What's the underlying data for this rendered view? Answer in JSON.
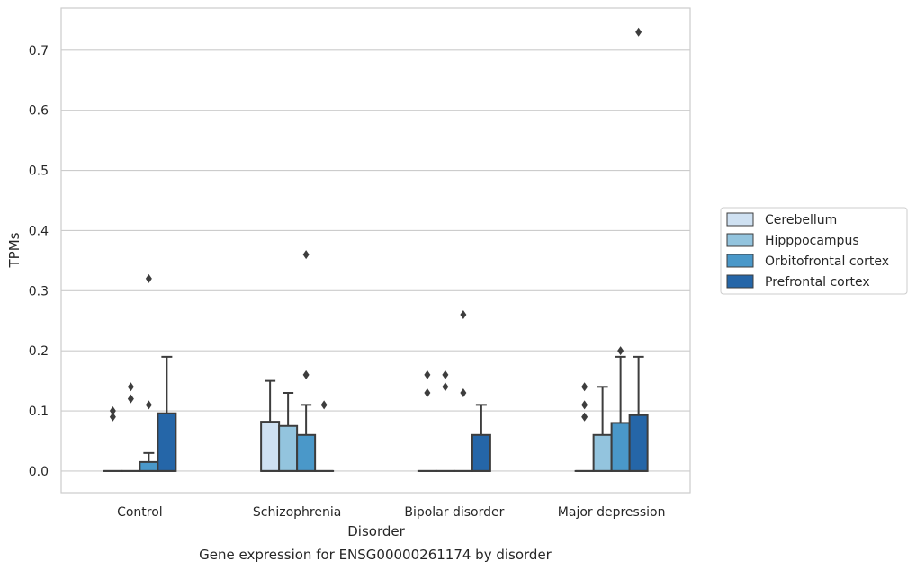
{
  "chart_data": {
    "type": "box",
    "caption": "Gene expression for ENSG00000261174 by disorder",
    "xlabel": "Disorder",
    "ylabel": "TPMs",
    "ylim": [
      -0.036,
      0.77
    ],
    "yticks": [
      0.0,
      0.1,
      0.2,
      0.3,
      0.4,
      0.5,
      0.6,
      0.7
    ],
    "ytick_labels": [
      "0.0",
      "0.1",
      "0.2",
      "0.3",
      "0.4",
      "0.5",
      "0.6",
      "0.7"
    ],
    "grid": "horizontal",
    "legend_position": "right-center",
    "categories": [
      "Control",
      "Schizophrenia",
      "Bipolar disorder",
      "Major depression"
    ],
    "series": [
      {
        "name": "Cerebellum",
        "color": "#cfe1f2",
        "boxes": [
          {
            "q1": 0,
            "median": 0,
            "q3": 0,
            "whisker_high": 0,
            "outliers": [
              0.09,
              0.1
            ]
          },
          {
            "q1": 0,
            "median": 0,
            "q3": 0.082,
            "whisker_high": 0.15,
            "outliers": []
          },
          {
            "q1": 0,
            "median": 0,
            "q3": 0,
            "whisker_high": 0,
            "outliers": [
              0.13,
              0.16
            ]
          },
          {
            "q1": 0,
            "median": 0,
            "q3": 0,
            "whisker_high": 0,
            "outliers": [
              0.09,
              0.11,
              0.14
            ]
          }
        ]
      },
      {
        "name": "Hipppocampus",
        "color": "#93c4de",
        "boxes": [
          {
            "q1": 0,
            "median": 0,
            "q3": 0,
            "whisker_high": 0,
            "outliers": [
              0.12,
              0.14
            ]
          },
          {
            "q1": 0,
            "median": 0,
            "q3": 0.075,
            "whisker_high": 0.13,
            "outliers": []
          },
          {
            "q1": 0,
            "median": 0,
            "q3": 0,
            "whisker_high": 0,
            "outliers": [
              0.14,
              0.16
            ]
          },
          {
            "q1": 0,
            "median": 0,
            "q3": 0.06,
            "whisker_high": 0.14,
            "outliers": []
          }
        ]
      },
      {
        "name": "Orbitofrontal cortex",
        "color": "#4a98c9",
        "boxes": [
          {
            "q1": 0,
            "median": 0,
            "q3": 0.015,
            "whisker_high": 0.03,
            "outliers": [
              0.11,
              0.32
            ]
          },
          {
            "q1": 0,
            "median": 0,
            "q3": 0.06,
            "whisker_high": 0.11,
            "outliers": [
              0.16,
              0.36
            ]
          },
          {
            "q1": 0,
            "median": 0,
            "q3": 0,
            "whisker_high": 0,
            "outliers": [
              0.13,
              0.26
            ]
          },
          {
            "q1": 0,
            "median": 0,
            "q3": 0.08,
            "whisker_high": 0.19,
            "outliers": [
              0.2
            ]
          }
        ]
      },
      {
        "name": "Prefrontal cortex",
        "color": "#2566a8",
        "boxes": [
          {
            "q1": 0,
            "median": 0,
            "q3": 0.096,
            "whisker_high": 0.19,
            "outliers": []
          },
          {
            "q1": 0,
            "median": 0,
            "q3": 0,
            "whisker_high": 0,
            "outliers": [
              0.11
            ]
          },
          {
            "q1": 0,
            "median": 0,
            "q3": 0.06,
            "whisker_high": 0.11,
            "outliers": []
          },
          {
            "q1": 0,
            "median": 0,
            "q3": 0.093,
            "whisker_high": 0.19,
            "outliers": [
              0.73
            ]
          }
        ]
      }
    ],
    "colors": {
      "grid": "#cccccc",
      "frame": "#cccccc",
      "edge": "#3d3d3d"
    }
  }
}
